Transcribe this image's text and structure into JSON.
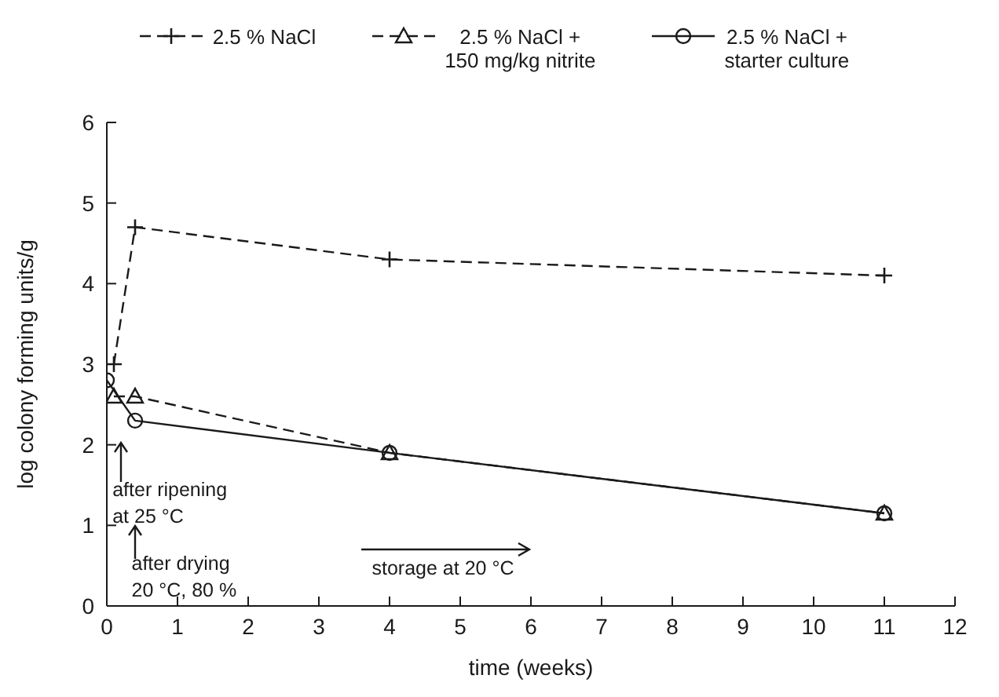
{
  "chart_data": {
    "type": "line",
    "xlabel": "time (weeks)",
    "ylabel": "log colony forming units/g",
    "x": [
      0,
      0.4,
      4,
      11
    ],
    "xlim": [
      0,
      12
    ],
    "xticks": [
      0,
      1,
      2,
      3,
      4,
      5,
      6,
      7,
      8,
      9,
      10,
      11,
      12
    ],
    "ylim": [
      0,
      6
    ],
    "yticks": [
      0,
      1,
      2,
      3,
      4,
      5,
      6
    ],
    "series": [
      {
        "name": "2.5 % NaCl",
        "color": "#1a1a1a",
        "marker": "cross",
        "line_style": "dashed",
        "x": [
          0.1,
          0.4,
          4,
          11
        ],
        "values": [
          3.0,
          4.7,
          4.3,
          4.1
        ]
      },
      {
        "name": "2.5 % NaCl +\n150 mg/kg nitrite",
        "color": "#1a1a1a",
        "marker": "triangle",
        "line_style": "dashed",
        "x": [
          0.1,
          0.4,
          4,
          11
        ],
        "values": [
          2.6,
          2.6,
          1.9,
          1.15
        ]
      },
      {
        "name": "2.5 % NaCl +\nstarter culture",
        "color": "#1a1a1a",
        "marker": "circle",
        "line_style": "solid",
        "values": [
          2.8,
          2.3,
          1.9,
          1.15
        ]
      }
    ],
    "annotations": [
      "after ripening\nat 25 °C",
      "after drying\n20 °C, 80 %",
      "storage at 20 °C"
    ],
    "legend": "top",
    "grid": false
  }
}
